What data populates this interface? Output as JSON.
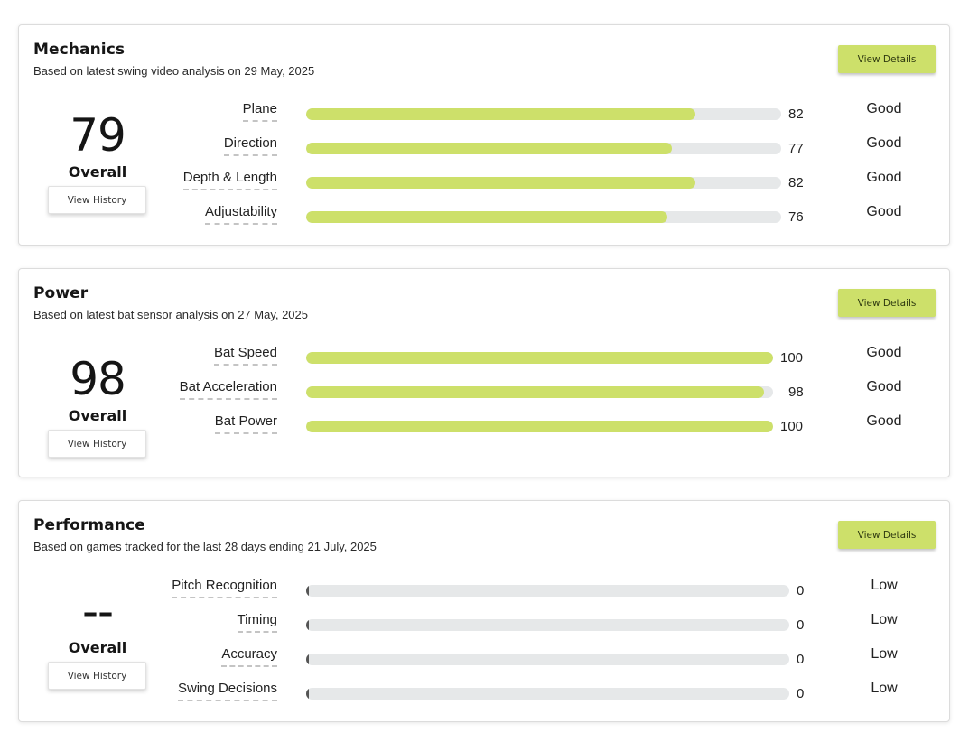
{
  "sections": [
    {
      "title": "Mechanics",
      "subtitle": "Based on latest swing video analysis on 29 May, 2025",
      "details_label": "View Details",
      "score": "79",
      "overall_label": "Overall",
      "history_label": "View History",
      "metrics": [
        {
          "label": "Plane",
          "value": 82,
          "value_text": "82",
          "rating": "Good"
        },
        {
          "label": "Direction",
          "value": 77,
          "value_text": "77",
          "rating": "Good"
        },
        {
          "label": "Depth & Length",
          "value": 82,
          "value_text": "82",
          "rating": "Good"
        },
        {
          "label": "Adjustability",
          "value": 76,
          "value_text": "76",
          "rating": "Good"
        }
      ]
    },
    {
      "title": "Power",
      "subtitle": "Based on latest bat sensor analysis on 27 May, 2025",
      "details_label": "View Details",
      "score": "98",
      "overall_label": "Overall",
      "history_label": "View History",
      "metrics": [
        {
          "label": "Bat Speed",
          "value": 100,
          "value_text": "100",
          "rating": "Good"
        },
        {
          "label": "Bat Acceleration",
          "value": 98,
          "value_text": "98",
          "rating": "Good"
        },
        {
          "label": "Bat Power",
          "value": 100,
          "value_text": "100",
          "rating": "Good"
        }
      ]
    },
    {
      "title": "Performance",
      "subtitle": "Based on games tracked for the last 28 days ending 21 July, 2025",
      "details_label": "View Details",
      "score": "--",
      "overall_label": "Overall",
      "history_label": "View History",
      "metrics": [
        {
          "label": "Pitch Recognition",
          "value": 0,
          "value_text": "0",
          "rating": "Low"
        },
        {
          "label": "Timing",
          "value": 0,
          "value_text": "0",
          "rating": "Low"
        },
        {
          "label": "Accuracy",
          "value": 0,
          "value_text": "0",
          "rating": "Low"
        },
        {
          "label": "Swing Decisions",
          "value": 0,
          "value_text": "0",
          "rating": "Low"
        }
      ]
    }
  ],
  "colors": {
    "accent": "#cde06a",
    "track": "#e6e8e9",
    "zero_marker": "#555555"
  }
}
